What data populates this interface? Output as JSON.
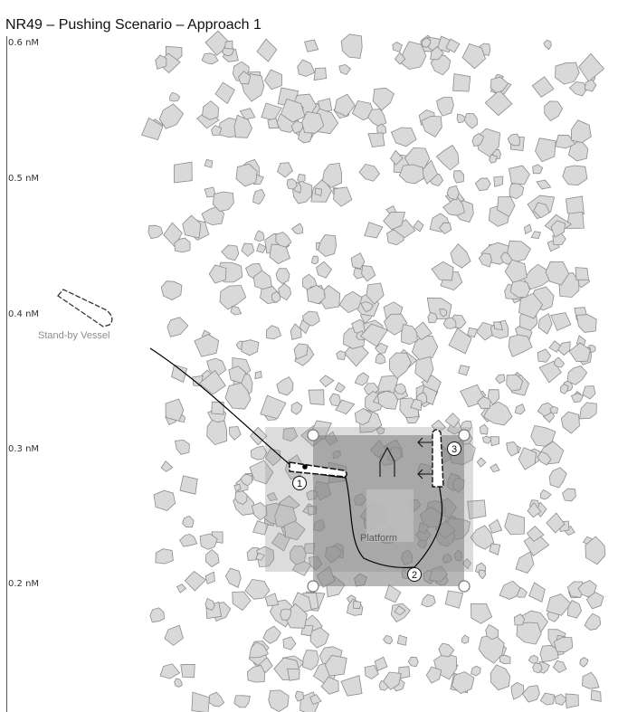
{
  "title": "NR49 – Pushing Scenario – Approach 1",
  "scale_labels": [
    "0.6 nM",
    "0.5 nM",
    "0.4 nM",
    "0.3 nM",
    "0.2 nM"
  ],
  "standby_vessel_label": "Stand-by Vessel",
  "platform_label": "Platform",
  "step_markers": [
    "1",
    "2",
    "3"
  ],
  "colors": {
    "ice_floe_fill": "#d9d9d9",
    "ice_floe_stroke": "#8c8c8c",
    "platform_zone": "#8a8a8a",
    "platform_inner": "#b5b5b5",
    "track_line": "#000000"
  }
}
